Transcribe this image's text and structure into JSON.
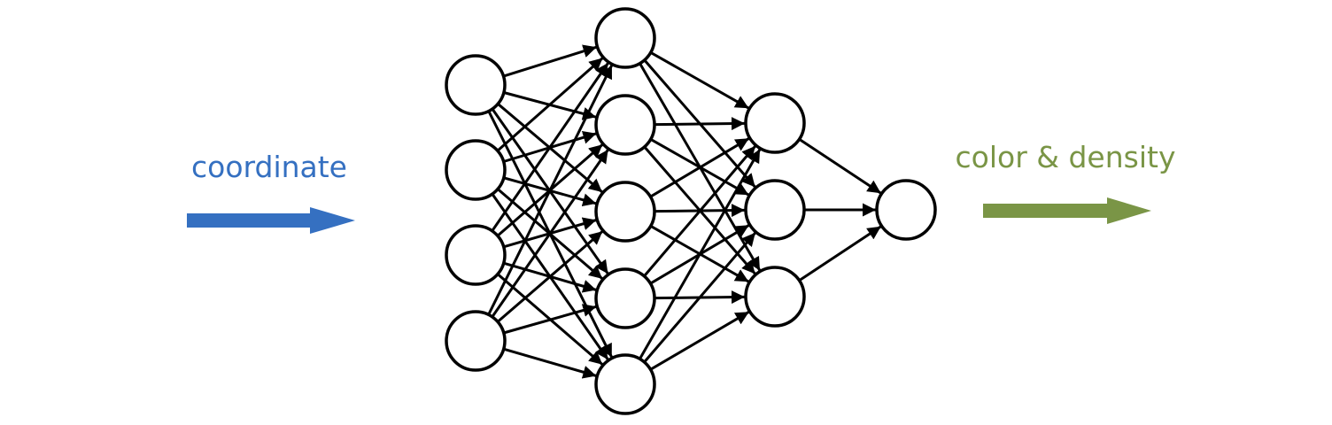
{
  "input_label": {
    "text": "coordinate",
    "color": "#3570c1"
  },
  "output_label": {
    "text": "color & density",
    "color": "#7a9546"
  },
  "network": {
    "layers": [
      {
        "name": "input-layer",
        "nodes": 4
      },
      {
        "name": "hidden-layer-1",
        "nodes": 5
      },
      {
        "name": "hidden-layer-2",
        "nodes": 3
      },
      {
        "name": "output-layer",
        "nodes": 1
      }
    ],
    "connectivity": "fully-connected"
  }
}
